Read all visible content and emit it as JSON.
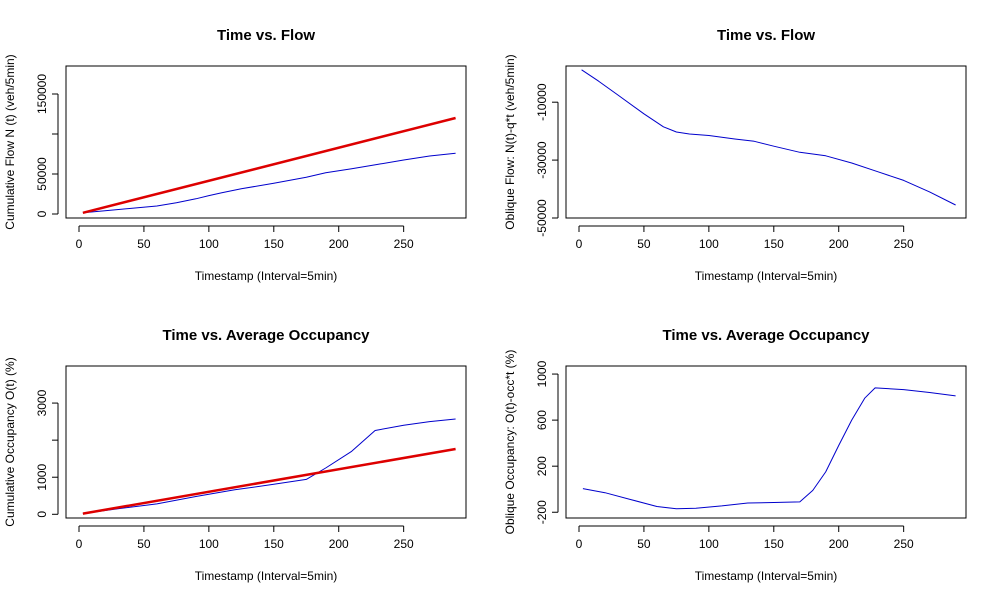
{
  "chart_data": [
    {
      "type": "line",
      "title": "Time vs. Flow",
      "xlabel": "Timestamp (Interval=5min)",
      "ylabel": "Cumulative Flow N (t) (veh/5min)",
      "xlim": [
        -10,
        298
      ],
      "ylim": [
        -5000,
        185000
      ],
      "xticks": [
        0,
        50,
        100,
        150,
        200,
        250
      ],
      "yticks": [
        0,
        50000,
        100000,
        150000
      ],
      "ytick_labels": [
        "0",
        "50000",
        "",
        "150000"
      ],
      "grid": false,
      "series": [
        {
          "color": "#0000cc",
          "width": 1,
          "x": [
            3,
            20,
            40,
            60,
            75,
            90,
            100,
            110,
            125,
            150,
            175,
            190,
            210,
            230,
            250,
            270,
            290
          ],
          "y": [
            1500,
            4000,
            7000,
            10000,
            14000,
            19000,
            23000,
            26500,
            31500,
            38500,
            46000,
            51500,
            56500,
            62000,
            67500,
            72500,
            76000
          ]
        },
        {
          "color": "#dd0000",
          "width": 2.5,
          "x": [
            3,
            290
          ],
          "y": [
            1500,
            120000
          ]
        }
      ]
    },
    {
      "type": "line",
      "title": "Time vs. Flow",
      "xlabel": "Timestamp (Interval=5min)",
      "ylabel": "Oblique Flow: N(t)-q*t (veh/5min)",
      "xlim": [
        -10,
        298
      ],
      "ylim": [
        -50000,
        2500
      ],
      "xticks": [
        0,
        50,
        100,
        150,
        200,
        250
      ],
      "yticks": [
        -50000,
        -30000,
        -10000
      ],
      "grid": false,
      "series": [
        {
          "color": "#0000cc",
          "width": 1,
          "x": [
            2,
            15,
            30,
            50,
            65,
            75,
            85,
            100,
            120,
            135,
            150,
            170,
            190,
            210,
            230,
            250,
            270,
            290
          ],
          "y": [
            1200,
            -2700,
            -7500,
            -14000,
            -18500,
            -20300,
            -21000,
            -21500,
            -22700,
            -23500,
            -25200,
            -27300,
            -28500,
            -31000,
            -34000,
            -37000,
            -41000,
            -45500
          ]
        }
      ]
    },
    {
      "type": "line",
      "title": "Time vs. Average Occupancy",
      "xlabel": "Timestamp (Interval=5min)",
      "ylabel": "Cumulative Occupancy O(t) (%)",
      "xlim": [
        -10,
        298
      ],
      "ylim": [
        -100,
        4000
      ],
      "xticks": [
        0,
        50,
        100,
        150,
        200,
        250
      ],
      "yticks": [
        0,
        1000,
        2000,
        3000
      ],
      "ytick_labels": [
        "0",
        "1000",
        "",
        "3000"
      ],
      "grid": false,
      "series": [
        {
          "color": "#0000cc",
          "width": 1,
          "x": [
            3,
            30,
            60,
            90,
            120,
            150,
            175,
            190,
            210,
            228,
            250,
            270,
            290
          ],
          "y": [
            20,
            150,
            280,
            480,
            660,
            810,
            940,
            1250,
            1700,
            2260,
            2400,
            2500,
            2570
          ]
        },
        {
          "color": "#dd0000",
          "width": 2.5,
          "x": [
            3,
            290
          ],
          "y": [
            20,
            1760
          ]
        }
      ]
    },
    {
      "type": "line",
      "title": "Time vs. Average Occupancy",
      "xlabel": "Timestamp (Interval=5min)",
      "ylabel": "Oblique Occupancy: O(t)-occ*t (%)",
      "xlim": [
        -10,
        298
      ],
      "ylim": [
        -250,
        1070
      ],
      "xticks": [
        0,
        50,
        100,
        150,
        200,
        250
      ],
      "yticks": [
        -200,
        200,
        600,
        1000
      ],
      "grid": false,
      "series": [
        {
          "color": "#0000cc",
          "width": 1,
          "x": [
            3,
            20,
            40,
            60,
            75,
            90,
            110,
            130,
            150,
            170,
            180,
            190,
            200,
            210,
            220,
            228,
            250,
            270,
            290
          ],
          "y": [
            5,
            -30,
            -90,
            -150,
            -170,
            -165,
            -145,
            -120,
            -115,
            -110,
            -10,
            150,
            380,
            600,
            790,
            880,
            865,
            840,
            810
          ]
        }
      ]
    }
  ]
}
